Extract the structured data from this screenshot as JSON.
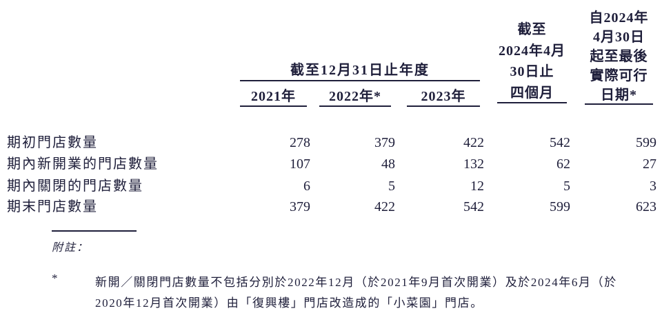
{
  "colors": {
    "ink": "#1e1e3a",
    "background": "#ffffff"
  },
  "table": {
    "col_group_header": "截至12月31日止年度",
    "columns": [
      {
        "label": "2021年"
      },
      {
        "label": "2022年*"
      },
      {
        "label": "2023年"
      },
      {
        "label_lines": [
          "截至",
          "2024年4月",
          "30日止",
          "四個月"
        ]
      },
      {
        "label_lines": [
          "自2024年",
          "4月30日",
          "起至最後",
          "實際可行",
          "日期*"
        ]
      }
    ],
    "rows": [
      {
        "label": "期初門店數量",
        "values": [
          "278",
          "379",
          "422",
          "542",
          "599"
        ]
      },
      {
        "label": "期內新開業的門店數量",
        "values": [
          "107",
          "48",
          "132",
          "62",
          "27"
        ]
      },
      {
        "label": "期內關閉的門店數量",
        "values": [
          "6",
          "5",
          "12",
          "5",
          "3"
        ]
      },
      {
        "label": "期末門店數量",
        "values": [
          "379",
          "422",
          "542",
          "599",
          "623"
        ]
      }
    ]
  },
  "footnotes": {
    "heading": "附註：",
    "notes": [
      {
        "marker": "*",
        "lines": [
          "新開／關閉門店數量不包括分別於2022年12月（於2021年9月首次開業）及於2024年6月（於",
          "2020年12月首次開業）由「復興樓」門店改造成的「小菜園」門店。"
        ]
      }
    ]
  }
}
